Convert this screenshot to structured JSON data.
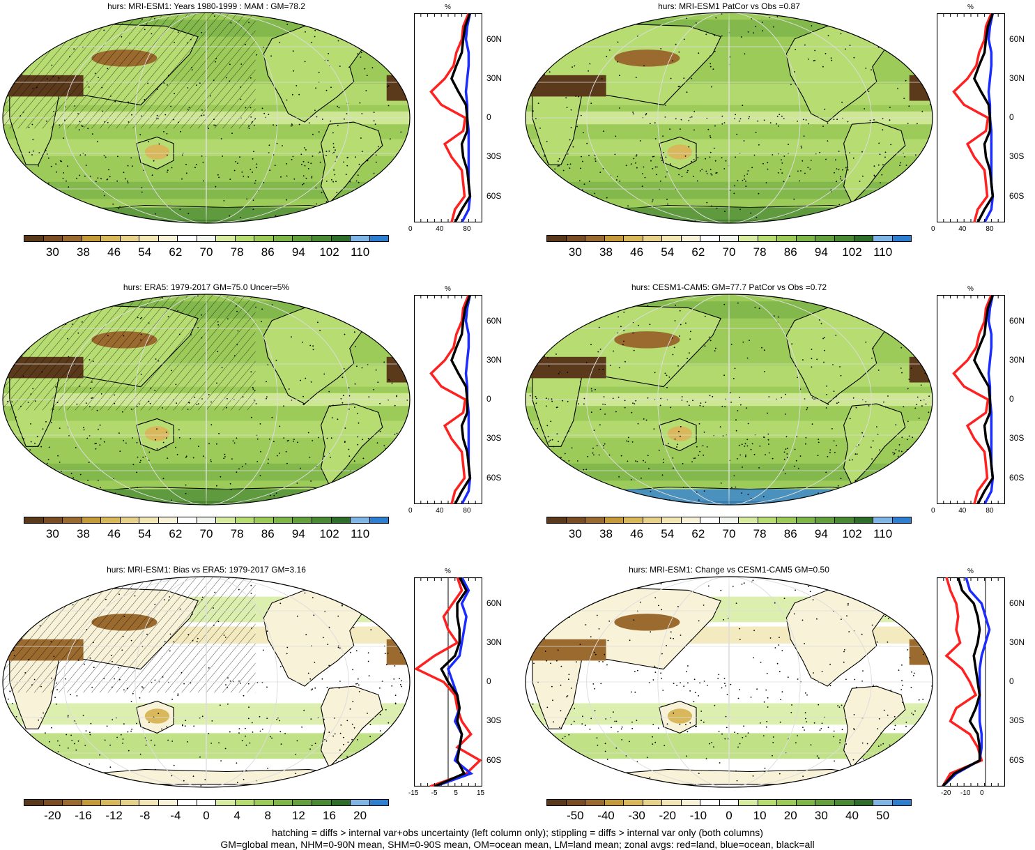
{
  "panels": [
    {
      "title": "hurs: MRI-ESM1: Years 1980-1999 : MAM : GM=78.2",
      "palette": "abs",
      "hatching": true,
      "cbar_labels": [
        "30",
        "38",
        "46",
        "54",
        "62",
        "70",
        "78",
        "86",
        "94",
        "102",
        "110"
      ],
      "zonal": {
        "xticks": [
          "0",
          "40",
          "80"
        ],
        "xlim": [
          0,
          100
        ],
        "zero_line": false
      }
    },
    {
      "title": "hurs: MRI-ESM1 PatCor vs Obs =0.87",
      "palette": "abs",
      "hatching": false,
      "cbar_labels": [
        "30",
        "38",
        "46",
        "54",
        "62",
        "70",
        "78",
        "86",
        "94",
        "102",
        "110"
      ],
      "zonal": {
        "xticks": [
          "0",
          "40",
          "80"
        ],
        "xlim": [
          0,
          100
        ],
        "zero_line": false
      }
    },
    {
      "title": "hurs: ERA5: 1979-2017 GM=75.0 Uncer=5%",
      "palette": "abs",
      "hatching": true,
      "cbar_labels": [
        "30",
        "38",
        "46",
        "54",
        "62",
        "70",
        "78",
        "86",
        "94",
        "102",
        "110"
      ],
      "zonal": {
        "xticks": [
          "0",
          "40",
          "80"
        ],
        "xlim": [
          0,
          100
        ],
        "zero_line": false
      }
    },
    {
      "title": "hurs: CESM1-CAM5: GM=77.7 PatCor vs Obs =0.72",
      "palette": "abs",
      "hatching": false,
      "cbar_labels": [
        "30",
        "38",
        "46",
        "54",
        "62",
        "70",
        "78",
        "86",
        "94",
        "102",
        "110"
      ],
      "zonal": {
        "xticks": [
          "0",
          "40",
          "80"
        ],
        "xlim": [
          0,
          100
        ],
        "zero_line": false
      }
    },
    {
      "title": "hurs: MRI-ESM1: Bias vs ERA5: 1979-2017 GM=3.16",
      "palette": "diff",
      "hatching": true,
      "cbar_labels": [
        "-20",
        "-16",
        "-12",
        "-8",
        "-4",
        "0",
        "4",
        "8",
        "12",
        "16",
        "20"
      ],
      "zonal": {
        "xticks": [
          "-15",
          "-5",
          "5",
          "15"
        ],
        "xlim": [
          -15,
          15
        ],
        "zero_line": true
      }
    },
    {
      "title": "hurs: MRI-ESM1: Change vs CESM1-CAM5 GM=0.50",
      "palette": "diff",
      "hatching": false,
      "cbar_labels": [
        "-50",
        "-40",
        "-30",
        "-20",
        "-10",
        "0",
        "10",
        "20",
        "30",
        "40",
        "50"
      ],
      "zonal": {
        "xticks": [
          "-20",
          "-10",
          "0"
        ],
        "xlim": [
          -25,
          10
        ],
        "zero_line": true
      }
    }
  ],
  "zonal_common": {
    "unit": "%",
    "ylabels": [
      "60N",
      "30N",
      "0",
      "30S",
      "60S"
    ],
    "line_colors": {
      "land": "#ff2020",
      "ocean": "#1a2cff",
      "all": "#000000"
    }
  },
  "palettes": {
    "abs": [
      "#5a3a1b",
      "#7a4e22",
      "#9a6a2e",
      "#c49a3a",
      "#d8b85a",
      "#e6d28a",
      "#f2e6b4",
      "#f7f2d8",
      "#ffffff",
      "#f2f6ee",
      "#d7eca0",
      "#b6dc72",
      "#9ccb5a",
      "#7fb64a",
      "#64a03c",
      "#4a8a32",
      "#2f6e2a",
      "#7fb6e6",
      "#2f7fd0"
    ],
    "diff": [
      "#5a3a1b",
      "#7a4e22",
      "#9a6a2e",
      "#c49a3a",
      "#d8b85a",
      "#e6d28a",
      "#f2e6b4",
      "#f7f2d8",
      "#ffffff",
      "#ffffff",
      "#d7eca0",
      "#b6dc72",
      "#9ccb5a",
      "#7fb64a",
      "#64a03c",
      "#4a8a32",
      "#2f6e2a",
      "#7fb6e6",
      "#2f7fd0"
    ]
  },
  "footnotes": {
    "line1": "hatching = diffs > internal var+obs uncertainty (left column only); stippling = diffs > internal var only (both columns)",
    "line2": "GM=global mean, NHM=0-90N mean, SHM=0-90S mean, OM=ocean mean, LM=land mean; zonal avgs: red=land, blue=ocean, black=all"
  }
}
